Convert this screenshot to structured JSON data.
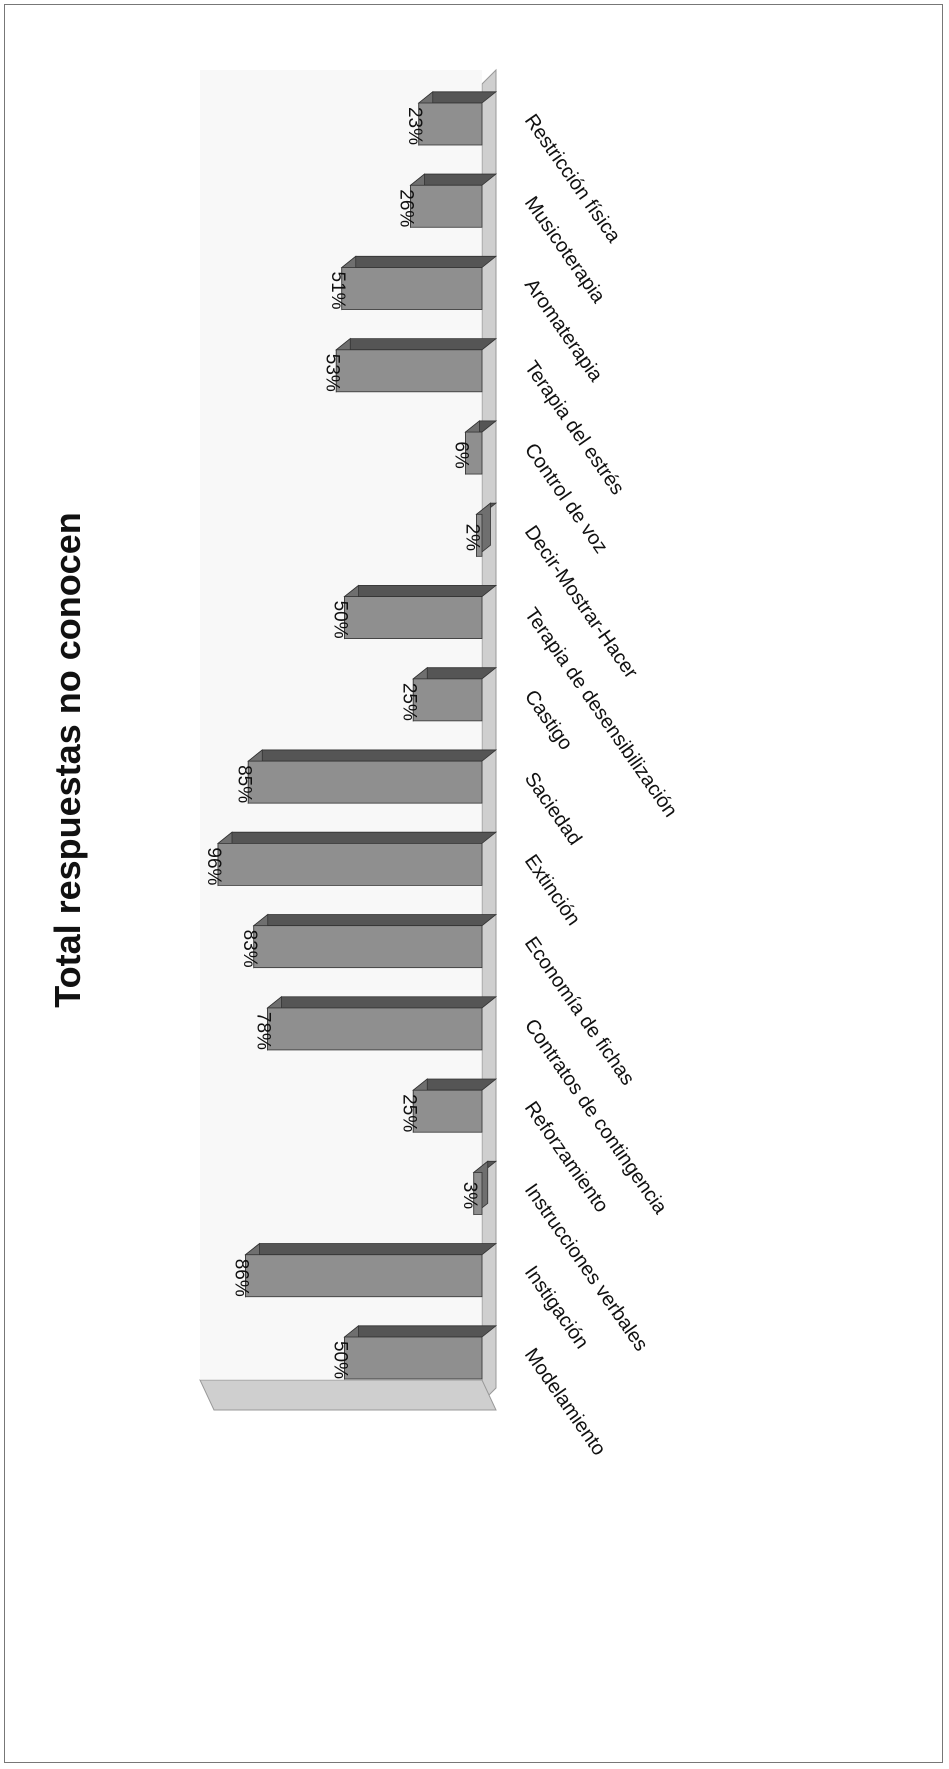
{
  "chart_data": {
    "type": "bar",
    "title": "Total respuestas no conocen",
    "categories": [
      "Modelamiento",
      "Instigación",
      "Instrucciones verbales",
      "Reforzamiento",
      "Contratos de contingencia",
      "Economía de fichas",
      "Extinción",
      "Saciedad",
      "Castigo",
      "Terapia de desensibilización",
      "Decir-Mostrar-Hacer",
      "Control de voz",
      "Terapia del estrés",
      "Aromaterapia",
      "Musicoterapia",
      "Restricción física"
    ],
    "values": [
      50,
      86,
      3,
      25,
      78,
      83,
      96,
      85,
      25,
      50,
      2,
      6,
      53,
      51,
      26,
      23
    ],
    "value_labels": [
      "50%",
      "86%",
      "3%",
      "25%",
      "78%",
      "83%",
      "96%",
      "85%",
      "25%",
      "50%",
      "2%",
      "6%",
      "53%",
      "51%",
      "26%",
      "23%"
    ],
    "ylim": [
      0,
      100
    ],
    "grid": false,
    "legend": "none",
    "orientation": "rotated 90 degrees clockwise on the page",
    "colors": {
      "bar_front": "#8f8f8f",
      "bar_top": "#555555",
      "bar_side": "#6f6f6f",
      "floor": "#cfcfcf",
      "wall": "#f4f4f4"
    }
  }
}
